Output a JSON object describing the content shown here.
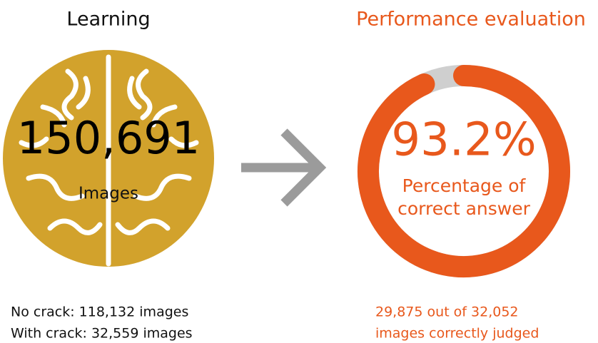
{
  "learning": {
    "title": "Learning",
    "count": "150,691",
    "unit": "Images",
    "breakdown": [
      "No crack: 118,132 images",
      "With crack: 32,559 images"
    ]
  },
  "evaluation": {
    "title": "Performance evaluation",
    "percent": 93.2,
    "percent_label": "93.2%",
    "caption": [
      "Percentage of",
      "correct answer"
    ],
    "detail": [
      "29,875 out of 32,052",
      "images correctly judged"
    ]
  }
}
